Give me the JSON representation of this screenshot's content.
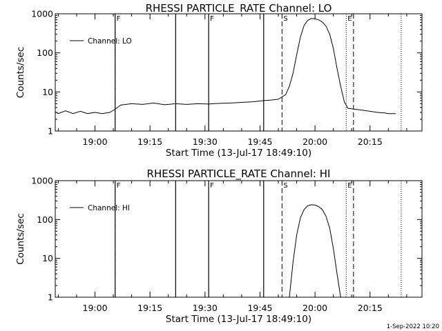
{
  "footer": {
    "stamp": "1-Sep-2022 10:20"
  },
  "colors": {
    "foreground": "#000000",
    "background": "#ffffff"
  },
  "chart_data": [
    {
      "type": "line",
      "title": "RHESSI PARTICLE_RATE Channel: LO",
      "xlabel": "Start Time (13-Jul-17 18:49:10)",
      "ylabel": "Counts/sec",
      "yscale": "log",
      "xlim": [
        "18:49:10",
        "20:29:10"
      ],
      "ylim": [
        1,
        1000
      ],
      "x_ticks": [
        "19:00",
        "19:15",
        "19:30",
        "19:45",
        "20:00",
        "20:15"
      ],
      "y_ticks": [
        "1",
        "10",
        "100",
        "1000"
      ],
      "legend": {
        "entries": [
          "Channel: LO"
        ],
        "position": "top-left"
      },
      "grid": false,
      "series": [
        {
          "name": "Channel: LO",
          "x": [
            "18:49:10",
            "18:50:00",
            "18:52:00",
            "18:54:00",
            "18:56:00",
            "18:58:00",
            "19:00:00",
            "19:02:00",
            "19:04:00",
            "19:05:30",
            "19:07:00",
            "19:10:00",
            "19:13:00",
            "19:16:00",
            "19:19:00",
            "19:22:00",
            "19:25:00",
            "19:28:00",
            "19:31:00",
            "19:34:00",
            "19:37:00",
            "19:40:00",
            "19:43:00",
            "19:46:00",
            "19:48:00",
            "19:50:00",
            "19:52:00",
            "19:53:00",
            "19:54:00",
            "19:55:00",
            "19:56:00",
            "19:57:00",
            "19:58:00",
            "19:59:00",
            "20:00:00",
            "20:01:00",
            "20:02:00",
            "20:03:00",
            "20:04:00",
            "20:05:00",
            "20:06:00",
            "20:07:00",
            "20:08:00",
            "20:09:00",
            "20:11:00",
            "20:13:00",
            "20:15:00",
            "20:17:00",
            "20:19:00",
            "20:20:00",
            "20:22:00"
          ],
          "y": [
            3.1,
            2.8,
            3.3,
            2.8,
            3.2,
            2.8,
            3.0,
            2.8,
            3.0,
            3.6,
            4.6,
            5.0,
            4.8,
            5.2,
            4.7,
            5.0,
            4.8,
            5.0,
            4.9,
            5.1,
            5.2,
            5.4,
            5.6,
            6.0,
            6.2,
            6.5,
            8.5,
            14,
            30,
            90,
            250,
            500,
            680,
            760,
            740,
            700,
            620,
            480,
            300,
            130,
            40,
            14,
            5.5,
            3.8,
            3.6,
            3.4,
            3.2,
            3.0,
            2.9,
            2.8,
            2.8
          ]
        }
      ]
    },
    {
      "type": "line",
      "title": "RHESSI PARTICLE_RATE Channel: HI",
      "xlabel": "Start Time (13-Jul-17 18:49:10)",
      "ylabel": "Counts/sec",
      "yscale": "log",
      "xlim": [
        "18:49:10",
        "20:29:10"
      ],
      "ylim": [
        1,
        1000
      ],
      "x_ticks": [
        "19:00",
        "19:15",
        "19:30",
        "19:45",
        "20:00",
        "20:15"
      ],
      "y_ticks": [
        "1",
        "10",
        "100",
        "1000"
      ],
      "legend": {
        "entries": [
          "Channel: HI"
        ],
        "position": "top-left"
      },
      "grid": false,
      "series": [
        {
          "name": "Channel: HI",
          "x": [
            "19:53:00",
            "19:54:00",
            "19:55:00",
            "19:56:00",
            "19:57:00",
            "19:58:00",
            "19:59:00",
            "20:00:00",
            "20:01:00",
            "20:02:00",
            "20:03:00",
            "20:04:00",
            "20:05:00",
            "20:06:00",
            "20:07:00"
          ],
          "y": [
            1,
            8,
            40,
            110,
            180,
            225,
            240,
            235,
            215,
            180,
            120,
            60,
            18,
            4,
            1
          ]
        }
      ]
    }
  ],
  "markers": {
    "dotted": [
      "19:05:30",
      "20:08:30",
      "20:23:30"
    ],
    "solid": [
      "19:05:30",
      "19:22:00",
      "19:31:00",
      "19:46:00"
    ],
    "dashed": [
      "19:51:00",
      "20:10:30"
    ],
    "letter_labels": [
      {
        "text": "F",
        "at": "19:05:30"
      },
      {
        "text": "F",
        "at": "19:31:00"
      },
      {
        "text": "S",
        "at": "19:51:00"
      },
      {
        "text": "E",
        "at": "20:08:30"
      }
    ]
  }
}
